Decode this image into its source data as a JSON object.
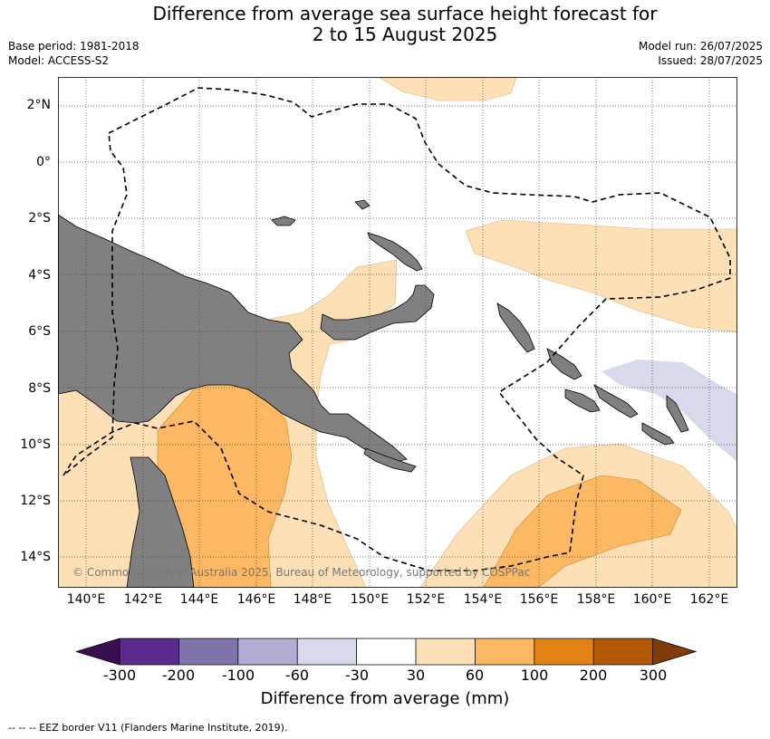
{
  "title_line1": "Difference from average sea surface height forecast for",
  "title_line2": "2 to 15 August 2025",
  "base_period": "Base period: 1981-2018",
  "model": "Model: ACCESS-S2",
  "model_run": "Model run: 26/07/2025",
  "issued": "Issued: 28/07/2025",
  "copyright": "© Commonwealth of Australia 2025, Bureau of Meteorology, supported by COSPPac",
  "lat_labels": [
    "2°N",
    "0°",
    "2°S",
    "4°S",
    "6°S",
    "8°S",
    "10°S",
    "12°S",
    "14°S"
  ],
  "lon_labels": [
    "140°E",
    "142°E",
    "144°E",
    "146°E",
    "148°E",
    "150°E",
    "152°E",
    "154°E",
    "156°E",
    "158°E",
    "160°E",
    "162°E"
  ],
  "colorbar": {
    "ticks": [
      "-300",
      "-200",
      "-100",
      "-60",
      "-30",
      "30",
      "60",
      "100",
      "200",
      "300"
    ],
    "colors": [
      "#3b0f4f",
      "#5a2b8c",
      "#8073ac",
      "#b2abd2",
      "#d8daeb",
      "#ffffff",
      "#fee0b6",
      "#fdb863",
      "#e08214",
      "#b35806",
      "#7f3b08"
    ],
    "label": "Difference from average (mm)"
  },
  "legend_footnote": "--  --  -- EEZ border V11 (Flanders Marine Institute, 2019)."
}
